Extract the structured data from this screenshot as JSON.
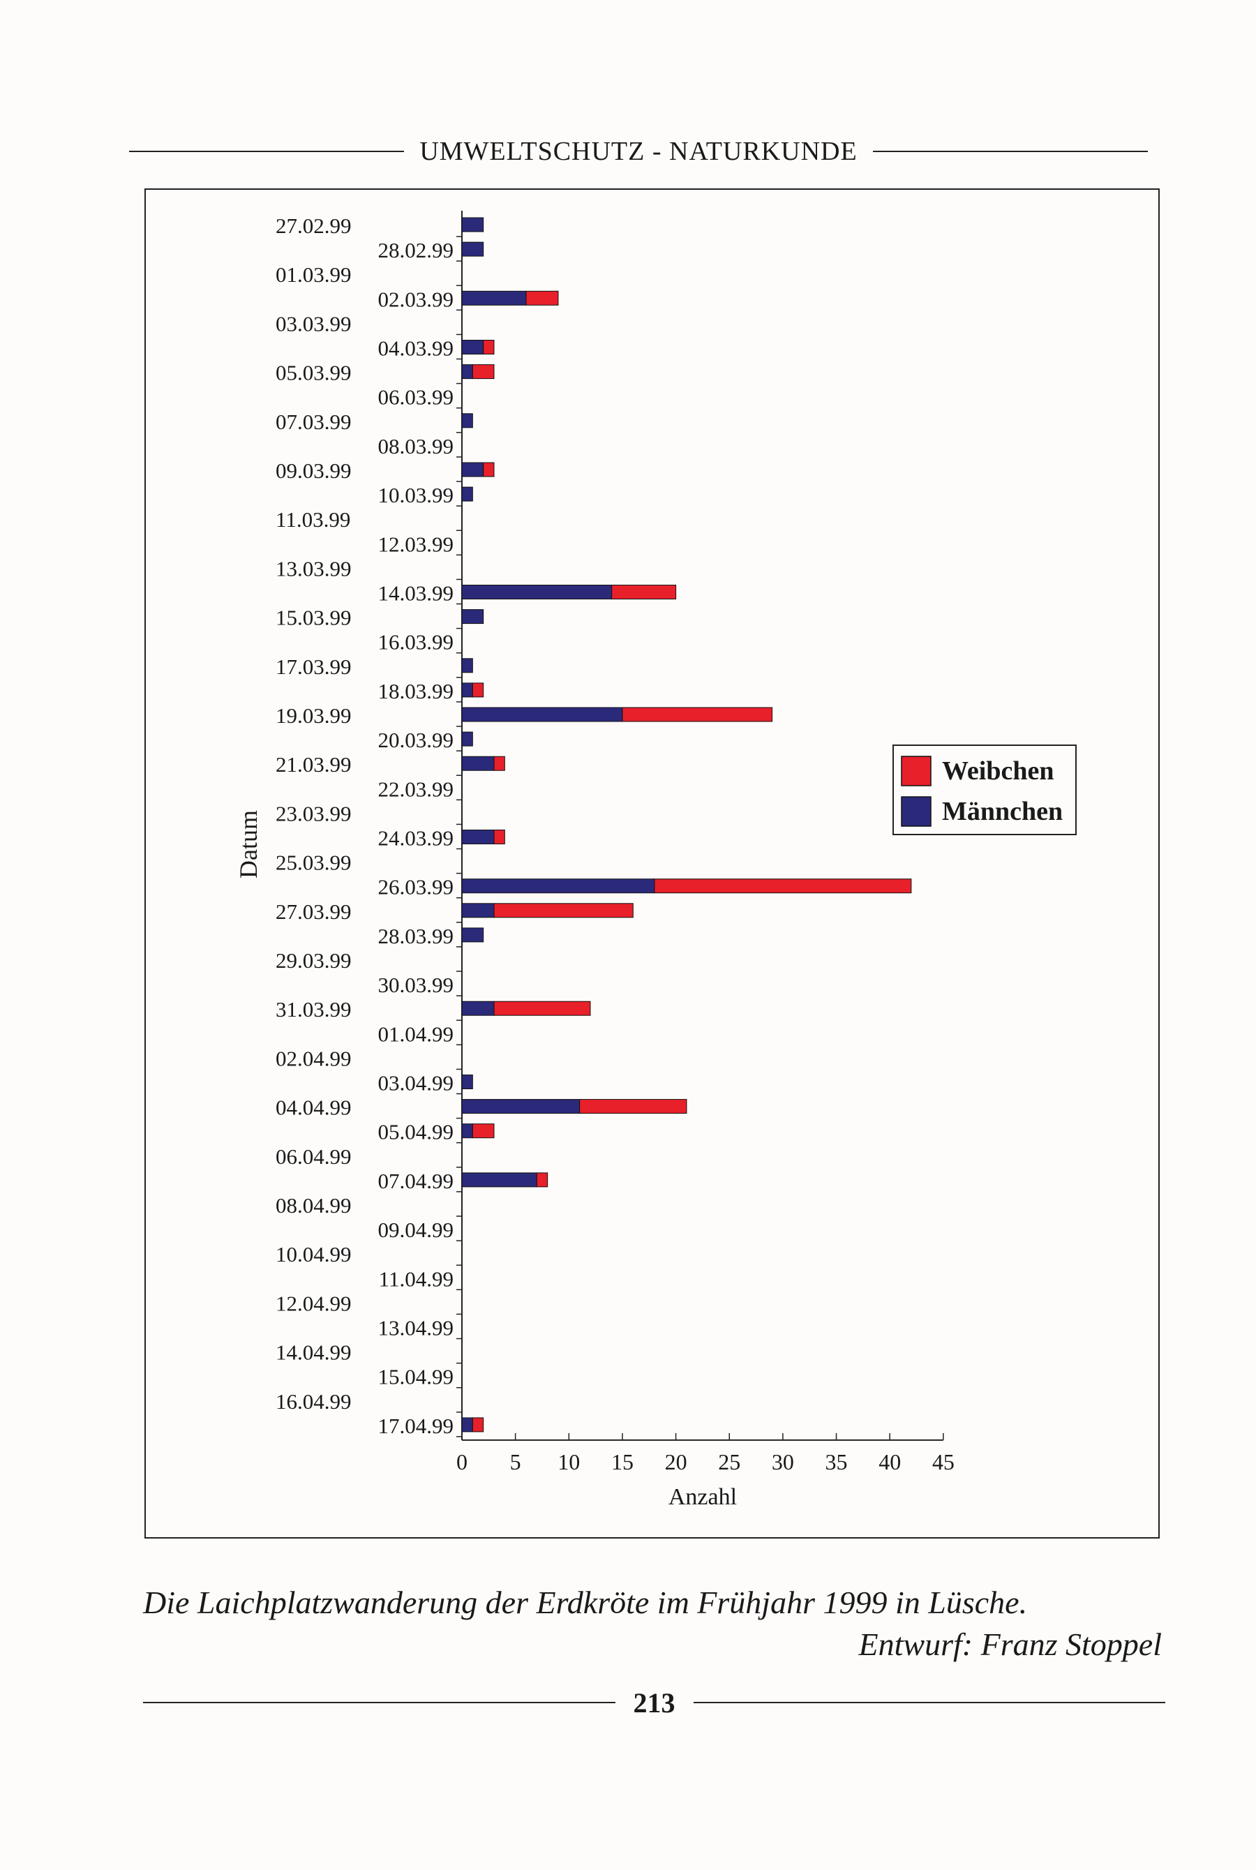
{
  "header": {
    "title": "UMWELTSCHUTZ - NATURKUNDE"
  },
  "chart_data": {
    "type": "bar",
    "orientation": "horizontal",
    "stacked": true,
    "title": "",
    "xlabel": "Anzahl",
    "ylabel": "Datum",
    "xlim": [
      0,
      45
    ],
    "xticks": [
      0,
      5,
      10,
      15,
      20,
      25,
      30,
      35,
      40,
      45
    ],
    "legend": "right",
    "categories": [
      "27.02.99",
      "28.02.99",
      "01.03.99",
      "02.03.99",
      "03.03.99",
      "04.03.99",
      "05.03.99",
      "06.03.99",
      "07.03.99",
      "08.03.99",
      "09.03.99",
      "10.03.99",
      "11.03.99",
      "12.03.99",
      "13.03.99",
      "14.03.99",
      "15.03.99",
      "16.03.99",
      "17.03.99",
      "18.03.99",
      "19.03.99",
      "20.03.99",
      "21.03.99",
      "22.03.99",
      "23.03.99",
      "24.03.99",
      "25.03.99",
      "26.03.99",
      "27.03.99",
      "28.03.99",
      "29.03.99",
      "30.03.99",
      "31.03.99",
      "01.04.99",
      "02.04.99",
      "03.04.99",
      "04.04.99",
      "05.04.99",
      "06.04.99",
      "07.04.99",
      "08.04.99",
      "09.04.99",
      "10.04.99",
      "11.04.99",
      "12.04.99",
      "13.04.99",
      "14.04.99",
      "15.04.99",
      "16.04.99",
      "17.04.99"
    ],
    "series": [
      {
        "name": "Männchen",
        "color": "#2b2a7a",
        "values": [
          2,
          2,
          0,
          6,
          0,
          2,
          1,
          0,
          1,
          0,
          2,
          1,
          0,
          0,
          0,
          14,
          2,
          0,
          1,
          1,
          15,
          1,
          3,
          0,
          0,
          3,
          0,
          18,
          3,
          2,
          0,
          0,
          3,
          0,
          0,
          1,
          11,
          1,
          0,
          7,
          0,
          0,
          0,
          0,
          0,
          0,
          0,
          0,
          0,
          1
        ]
      },
      {
        "name": "Weibchen",
        "color": "#e8202a",
        "values": [
          0,
          0,
          0,
          3,
          0,
          1,
          2,
          0,
          0,
          0,
          1,
          0,
          0,
          0,
          0,
          6,
          0,
          0,
          0,
          1,
          14,
          0,
          1,
          0,
          0,
          1,
          0,
          24,
          13,
          0,
          0,
          0,
          9,
          0,
          0,
          0,
          10,
          2,
          0,
          1,
          0,
          0,
          0,
          0,
          0,
          0,
          0,
          0,
          0,
          1
        ]
      }
    ]
  },
  "caption": "Die Laichplatzwanderung der Erdkröte im Frühjahr 1999 in Lüsche.",
  "credit": "Entwurf: Franz Stoppel",
  "page_number": "213"
}
